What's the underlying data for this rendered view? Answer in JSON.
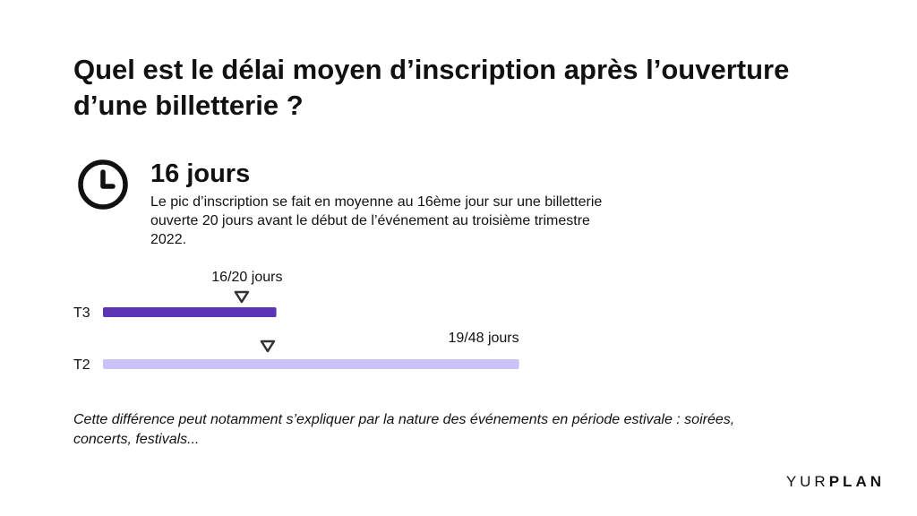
{
  "title": "Quel est le délai moyen d’inscription après l’ouverture d’une billetterie ?",
  "stat": {
    "icon": "clock-icon",
    "value": "16 jours",
    "description": "Le pic d’inscription se fait en moyenne au 16ème jour sur une billetterie ouverte 20 jours avant le début de l’événement au troisième trimestre 2022."
  },
  "chart_data": {
    "type": "bar",
    "orientation": "horizontal",
    "categories": [
      "T3",
      "T2"
    ],
    "series": [
      {
        "values": [
          20,
          48
        ]
      }
    ],
    "markers": [
      16,
      19
    ],
    "annotations": [
      "16/20 jours",
      "19/48 jours"
    ],
    "colors": [
      "#5b35b5",
      "#cbc3f8"
    ]
  },
  "note": "Cette différence peut notamment s’expliquer par la nature des événements en période estivale : soirées, concerts, festivals...",
  "brand": {
    "light": "YUR",
    "bold": "PLAN"
  }
}
